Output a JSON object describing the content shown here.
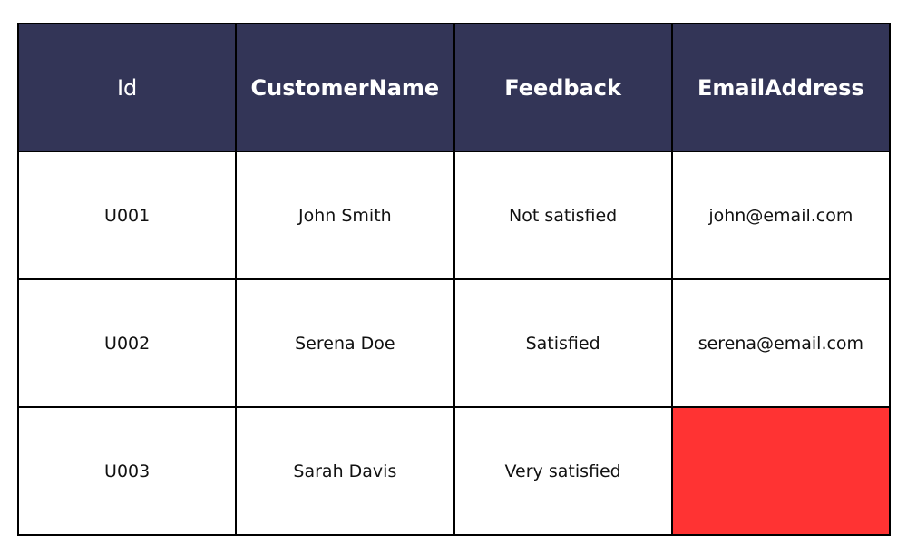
{
  "table": {
    "headers": [
      "Id",
      "CustomerName",
      "Feedback",
      "EmailAddress"
    ],
    "rows": [
      [
        "U001",
        "John Smith",
        "Not satisfied",
        "john@email.com"
      ],
      [
        "U002",
        "Serena Doe",
        "Satisfied",
        "serena@email.com"
      ],
      [
        "U003",
        "Sarah Davis",
        "Very satisfied",
        ""
      ]
    ],
    "colors": {
      "header_bg": "#333557",
      "missing_cell_highlight": "#ff3333"
    }
  }
}
